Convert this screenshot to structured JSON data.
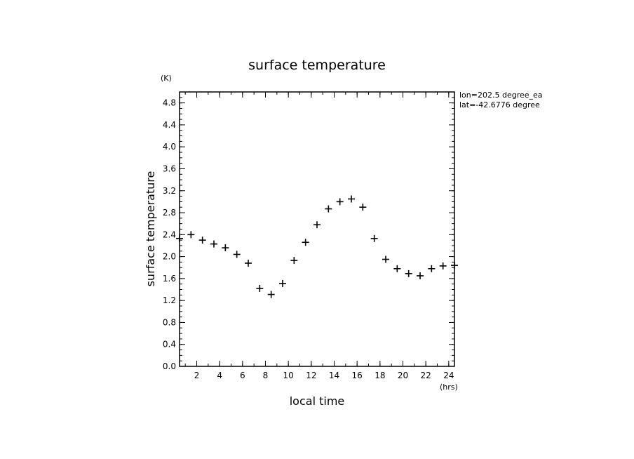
{
  "chart_data": {
    "type": "scatter",
    "title": "surface temperature",
    "xlabel": "local time",
    "ylabel": "surface temperature",
    "x_unit": "(hrs)",
    "y_unit": "(K)",
    "xlim": [
      0.5,
      24.5
    ],
    "ylim": [
      0.0,
      5.0
    ],
    "x_ticks": [
      2,
      4,
      6,
      8,
      10,
      12,
      14,
      16,
      18,
      20,
      22,
      24
    ],
    "y_ticks": [
      0.0,
      0.4,
      0.8,
      1.2,
      1.6,
      2.0,
      2.4,
      2.8,
      3.2,
      3.6,
      4.0,
      4.4,
      4.8
    ],
    "y_tick_labels": [
      "0.0",
      "0.4",
      "0.8",
      "1.2",
      "1.6",
      "2.0",
      "2.4",
      "2.8",
      "3.2",
      "3.6",
      "4.0",
      "4.4",
      "4.8"
    ],
    "marker": "plus",
    "grid": false,
    "x": [
      0.5,
      1.5,
      2.5,
      3.5,
      4.5,
      5.5,
      6.5,
      7.5,
      8.5,
      9.5,
      10.5,
      11.5,
      12.5,
      13.5,
      14.5,
      15.5,
      16.5,
      17.5,
      18.5,
      19.5,
      20.5,
      21.5,
      22.5,
      23.5,
      24.5
    ],
    "values": [
      2.33,
      2.4,
      2.3,
      2.23,
      2.16,
      2.04,
      1.88,
      1.42,
      1.31,
      1.51,
      1.93,
      2.26,
      2.58,
      2.87,
      3.0,
      3.05,
      2.9,
      2.33,
      1.95,
      1.78,
      1.69,
      1.65,
      1.78,
      1.83,
      1.84
    ],
    "annotations": [
      "lon=202.5 degree_ea",
      "lat=-42.6776 degree"
    ]
  }
}
